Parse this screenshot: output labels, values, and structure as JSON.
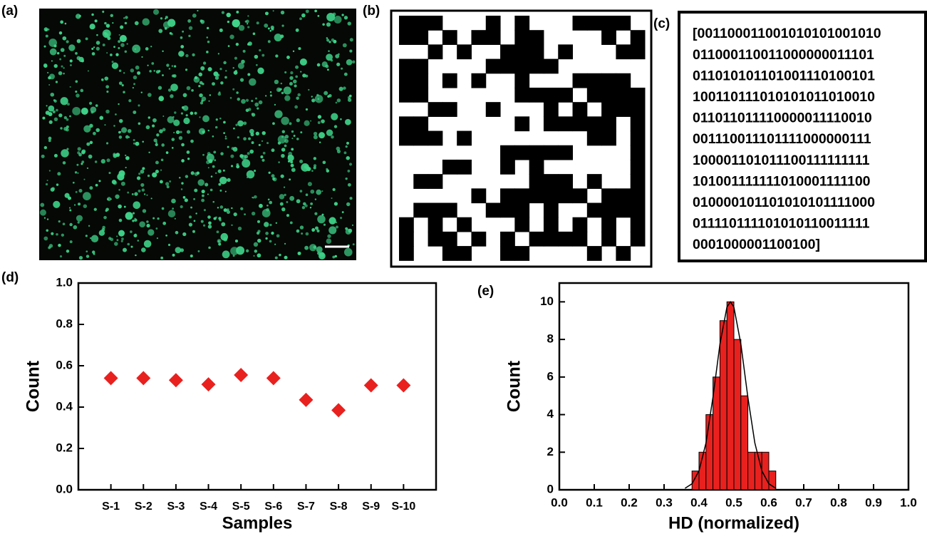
{
  "panel_labels": [
    "(a)",
    "(b)",
    "(c)",
    "(d)",
    "(e)"
  ],
  "binary_text": [
    "[001100011001010101001010",
    "011000110011000000011101",
    "011010101101001110100101",
    "100110111010101011010010",
    "011011011110000011110010",
    "001110011101111000000111",
    "100001101011100111111111",
    "101001111111010001111100",
    "010000101101010101111000",
    "011110111101010110011111",
    "0001000001100100]"
  ],
  "chart_data": [
    {
      "type": "scatter",
      "x_label": "Samples",
      "y_label": "Count",
      "categories": [
        "S-1",
        "S-2",
        "S-3",
        "S-4",
        "S-5",
        "S-6",
        "S-7",
        "S-8",
        "S-9",
        "S-10"
      ],
      "values": [
        0.54,
        0.54,
        0.53,
        0.51,
        0.555,
        0.54,
        0.435,
        0.385,
        0.505,
        0.505
      ],
      "color": "#e8211f",
      "ylim": [
        0,
        1
      ],
      "yticks": [
        {
          "value": 0,
          "label": "0.0"
        },
        0.2,
        0.4,
        0.6,
        0.8,
        {
          "value": 1,
          "label": "1.0"
        }
      ]
    },
    {
      "type": "histogram",
      "x_label": "HD (normalized)",
      "y_label": "Count",
      "bins": [
        0.38,
        0.4,
        0.42,
        0.44,
        0.46,
        0.48,
        0.5,
        0.52,
        0.54,
        0.56,
        0.58,
        0.6,
        0.62
      ],
      "counts": [
        1,
        2,
        4,
        6,
        9,
        10,
        8,
        5,
        2,
        2,
        2,
        1
      ],
      "color": "#e8211f",
      "fit": {
        "x": [
          0.36,
          0.38,
          0.4,
          0.42,
          0.44,
          0.46,
          0.48,
          0.49,
          0.5,
          0.52,
          0.54,
          0.56,
          0.58,
          0.6,
          0.62
        ],
        "values": [
          0.08,
          0.32,
          1.01,
          2.49,
          4.92,
          7.75,
          9.72,
          10,
          9.72,
          7.75,
          4.92,
          2.49,
          1.01,
          0.32,
          0.08
        ],
        "color": "#000000"
      },
      "xlim": [
        0,
        1
      ],
      "ylim": [
        0,
        11
      ],
      "xticks": [
        {
          "value": 0,
          "label": "0.0"
        },
        0.1,
        0.2,
        0.3,
        0.4,
        0.5,
        0.6,
        0.7,
        0.8,
        0.9,
        {
          "value": 1,
          "label": "1.0"
        }
      ],
      "yticks": [
        0,
        2,
        4,
        6,
        8,
        10
      ]
    }
  ]
}
